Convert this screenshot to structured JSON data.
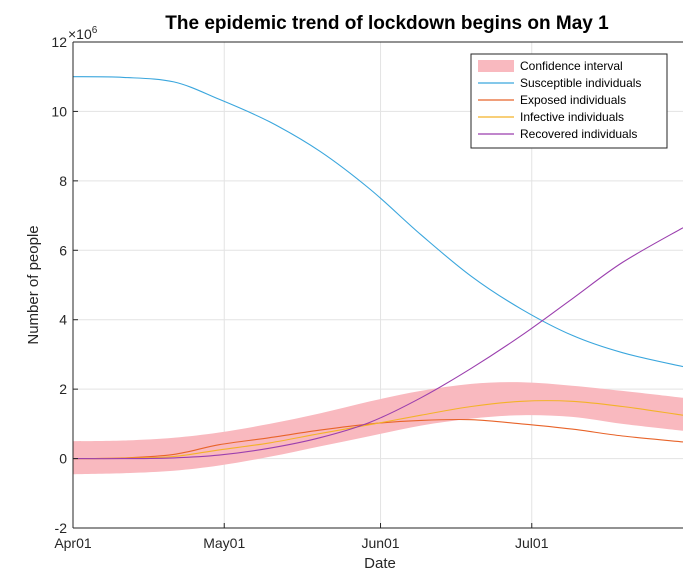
{
  "chart_data": {
    "type": "line",
    "title": "The epidemic trend of lockdown begins on May 1",
    "xlabel": "Date",
    "ylabel": "Number of people",
    "y_exponent_label": "×10",
    "y_exponent_power": "6",
    "x_ticks": [
      {
        "date": "2020-04-01",
        "label": "Apr01"
      },
      {
        "date": "2020-05-01",
        "label": "May01"
      },
      {
        "date": "2020-06-01",
        "label": "Jun01"
      },
      {
        "date": "2020-07-01",
        "label": "Jul01"
      }
    ],
    "xlim": [
      "2020-04-01",
      "2020-07-31"
    ],
    "ylim": [
      -2,
      12
    ],
    "y_ticks": [
      -2,
      0,
      2,
      4,
      6,
      8,
      10,
      12
    ],
    "grid": true,
    "legend_position": "top-right",
    "x": [
      "2020-04-01",
      "2020-04-11",
      "2020-04-21",
      "2020-04-30",
      "2020-05-10",
      "2020-05-20",
      "2020-05-30",
      "2020-06-09",
      "2020-06-19",
      "2020-06-29",
      "2020-07-09",
      "2020-07-19",
      "2020-07-31"
    ],
    "confidence_interval": {
      "name": "Confidence interval",
      "color": "#f9b9bf",
      "lower": [
        -0.45,
        -0.42,
        -0.35,
        -0.2,
        0.05,
        0.35,
        0.65,
        0.95,
        1.15,
        1.25,
        1.2,
        1.0,
        0.8
      ],
      "upper": [
        0.5,
        0.52,
        0.6,
        0.75,
        1.0,
        1.3,
        1.65,
        1.95,
        2.15,
        2.2,
        2.1,
        1.95,
        1.75
      ]
    },
    "series": [
      {
        "name": "Susceptible individuals",
        "color": "#3aa6dd",
        "values": [
          11.0,
          10.98,
          10.85,
          10.35,
          9.7,
          8.85,
          7.75,
          6.45,
          5.25,
          4.3,
          3.55,
          3.05,
          2.65
        ]
      },
      {
        "name": "Exposed individuals",
        "color": "#e8642a",
        "values": [
          0.0,
          0.02,
          0.12,
          0.4,
          0.6,
          0.82,
          1.0,
          1.1,
          1.12,
          1.0,
          0.85,
          0.65,
          0.48
        ]
      },
      {
        "name": "Infective individuals",
        "color": "#f3b228",
        "values": [
          0.0,
          0.01,
          0.06,
          0.25,
          0.45,
          0.72,
          0.98,
          1.25,
          1.5,
          1.65,
          1.65,
          1.5,
          1.25
        ]
      },
      {
        "name": "Recovered individuals",
        "color": "#9b3fae",
        "values": [
          0.0,
          0.0,
          0.02,
          0.1,
          0.3,
          0.6,
          1.05,
          1.75,
          2.6,
          3.55,
          4.6,
          5.65,
          6.65
        ]
      }
    ]
  }
}
